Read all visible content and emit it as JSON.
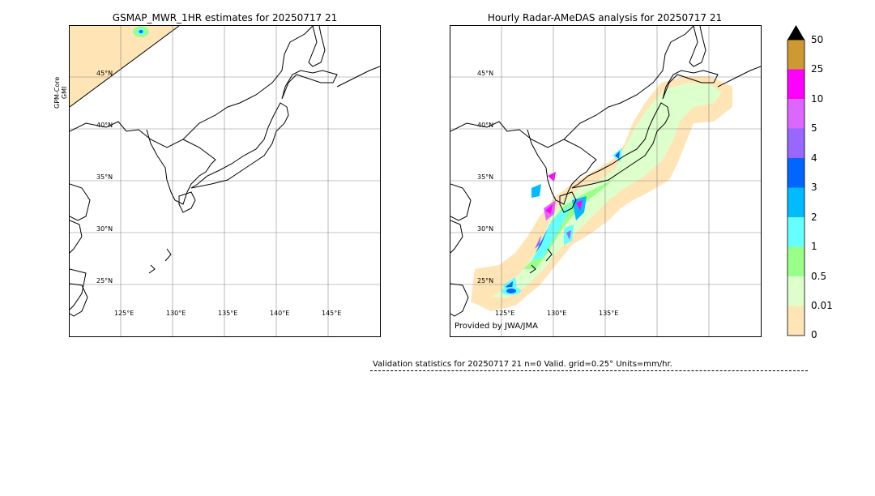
{
  "left_panel": {
    "title": "GSMAP_MWR_1HR estimates for 20250717 21",
    "side_label_line1": "GPM-Core",
    "side_label_line2": "GMI",
    "lat_labels": [
      "45°N",
      "40°N",
      "35°N",
      "30°N",
      "25°N"
    ],
    "lon_labels": [
      "125°E",
      "130°E",
      "135°E",
      "140°E",
      "145°E"
    ]
  },
  "right_panel": {
    "title": "Hourly Radar-AMeDAS analysis for 20250717 21",
    "lat_labels": [
      "45°N",
      "40°N",
      "35°N",
      "30°N",
      "25°N"
    ],
    "lon_labels": [
      "125°E",
      "130°E",
      "135°E"
    ],
    "credit": "Provided by JWA/JMA"
  },
  "colorbar": {
    "ticks": [
      "50",
      "25",
      "10",
      "5",
      "4",
      "3",
      "2",
      "1",
      "0.5",
      "0.01",
      "0"
    ],
    "colors": [
      "#cc9933",
      "#ff00ff",
      "#dd66ff",
      "#9966ff",
      "#0066ff",
      "#00bbff",
      "#66ffff",
      "#99ff88",
      "#ddffcc",
      "#ffe4b5"
    ],
    "over_color": "#000000"
  },
  "validation": {
    "text": "Validation statistics for 20250717 21  n=0 Valid. grid=0.25° Units=mm/hr."
  }
}
